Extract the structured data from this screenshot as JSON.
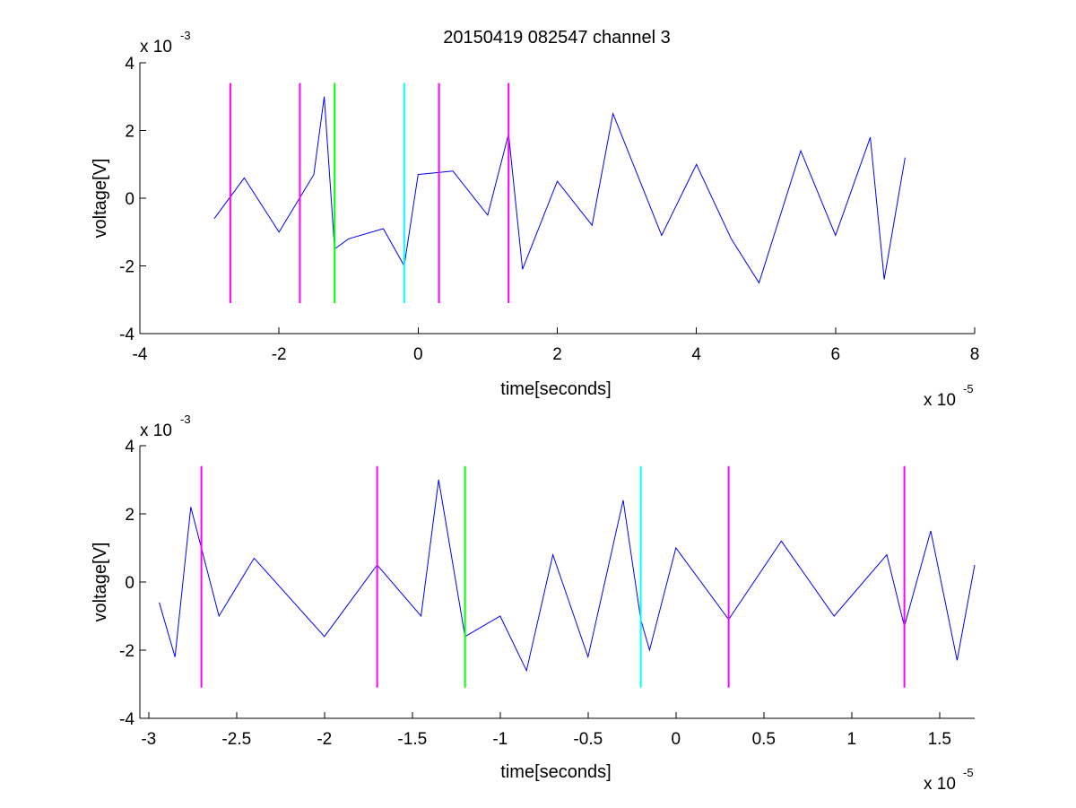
{
  "chart_data": [
    {
      "type": "line",
      "title": "20150419 082547 channel 3",
      "xlabel": "time[seconds]",
      "ylabel": "voltage[V]",
      "x_multiplier": "x 10",
      "x_exponent": "-5",
      "y_multiplier": "x 10",
      "y_exponent": "-3",
      "xlim": [
        -4,
        8
      ],
      "ylim": [
        -4,
        4
      ],
      "x_ticks": [
        -4,
        -2,
        0,
        2,
        4,
        6,
        8
      ],
      "x_tick_labels": [
        "-4",
        "-2",
        "0",
        "2",
        "4",
        "6",
        "8"
      ],
      "y_ticks": [
        -4,
        -2,
        0,
        2,
        4
      ],
      "y_tick_labels": [
        "-4",
        "-2",
        "0",
        "2",
        "4"
      ],
      "grid": false,
      "series": [
        {
          "color": "#0000ff",
          "x": [
            -2.93,
            -2.5,
            -2.0,
            -1.5,
            -1.35,
            -1.2,
            -1.0,
            -0.5,
            -0.2,
            0.0,
            0.5,
            1.0,
            1.3,
            1.5,
            2.0,
            2.5,
            2.8,
            3.5,
            4.0,
            4.5,
            4.9,
            5.5,
            6.0,
            6.5,
            6.7,
            7.0
          ],
          "y": [
            -0.6,
            0.6,
            -1.0,
            0.7,
            3.0,
            -1.5,
            -1.2,
            -0.9,
            -2.0,
            0.7,
            0.8,
            -0.5,
            1.9,
            -2.1,
            0.5,
            -0.8,
            2.5,
            -1.1,
            1.0,
            -1.2,
            -2.5,
            1.4,
            -1.1,
            1.8,
            -2.4,
            1.2
          ]
        }
      ],
      "markers": [
        {
          "x": -2.7,
          "ymin": -3.1,
          "ymax": 3.4,
          "color": "#ff00ff"
        },
        {
          "x": -1.7,
          "ymin": -3.1,
          "ymax": 3.4,
          "color": "#ff00ff"
        },
        {
          "x": -1.2,
          "ymin": -3.1,
          "ymax": 3.4,
          "color": "#00ff00"
        },
        {
          "x": -0.2,
          "ymin": -3.1,
          "ymax": 3.4,
          "color": "#00ffff"
        },
        {
          "x": 0.3,
          "ymin": -3.1,
          "ymax": 3.4,
          "color": "#ff00ff"
        },
        {
          "x": 1.3,
          "ymin": -3.1,
          "ymax": 3.4,
          "color": "#ff00ff"
        }
      ]
    },
    {
      "type": "line",
      "title": "",
      "xlabel": "time[seconds]",
      "ylabel": "voltage[V]",
      "x_multiplier": "x 10",
      "x_exponent": "-5",
      "y_multiplier": "x 10",
      "y_exponent": "-3",
      "xlim": [
        -3.05,
        1.7
      ],
      "ylim": [
        -4,
        4
      ],
      "x_ticks": [
        -3,
        -2.5,
        -2,
        -1.5,
        -1,
        -0.5,
        0,
        0.5,
        1,
        1.5
      ],
      "x_tick_labels": [
        "-3",
        "-2.5",
        "-2",
        "-1.5",
        "-1",
        "-0.5",
        "0",
        "0.5",
        "1",
        "1.5"
      ],
      "y_ticks": [
        -4,
        -2,
        0,
        2,
        4
      ],
      "y_tick_labels": [
        "-4",
        "-2",
        "0",
        "2",
        "4"
      ],
      "grid": false,
      "series": [
        {
          "color": "#0000ff",
          "x": [
            -2.94,
            -2.85,
            -2.76,
            -2.6,
            -2.4,
            -2.0,
            -1.7,
            -1.45,
            -1.35,
            -1.2,
            -1.0,
            -0.85,
            -0.7,
            -0.5,
            -0.3,
            -0.2,
            -0.15,
            0.0,
            0.3,
            0.6,
            0.9,
            1.2,
            1.3,
            1.45,
            1.6,
            1.7
          ],
          "y": [
            -0.6,
            -2.2,
            2.2,
            -1.0,
            0.7,
            -1.6,
            0.5,
            -1.0,
            3.0,
            -1.6,
            -1.0,
            -2.6,
            0.8,
            -2.2,
            2.4,
            -1.1,
            -2.0,
            1.0,
            -1.1,
            1.2,
            -1.0,
            0.8,
            -1.3,
            1.5,
            -2.3,
            0.5
          ]
        }
      ],
      "markers": [
        {
          "x": -2.7,
          "ymin": -3.1,
          "ymax": 3.4,
          "color": "#ff00ff"
        },
        {
          "x": -1.7,
          "ymin": -3.1,
          "ymax": 3.4,
          "color": "#ff00ff"
        },
        {
          "x": -1.2,
          "ymin": -3.1,
          "ymax": 3.4,
          "color": "#00ff00"
        },
        {
          "x": -0.2,
          "ymin": -3.1,
          "ymax": 3.4,
          "color": "#00ffff"
        },
        {
          "x": 0.3,
          "ymin": -3.1,
          "ymax": 3.4,
          "color": "#ff00ff"
        },
        {
          "x": 1.3,
          "ymin": -3.1,
          "ymax": 3.4,
          "color": "#ff00ff"
        }
      ]
    }
  ]
}
